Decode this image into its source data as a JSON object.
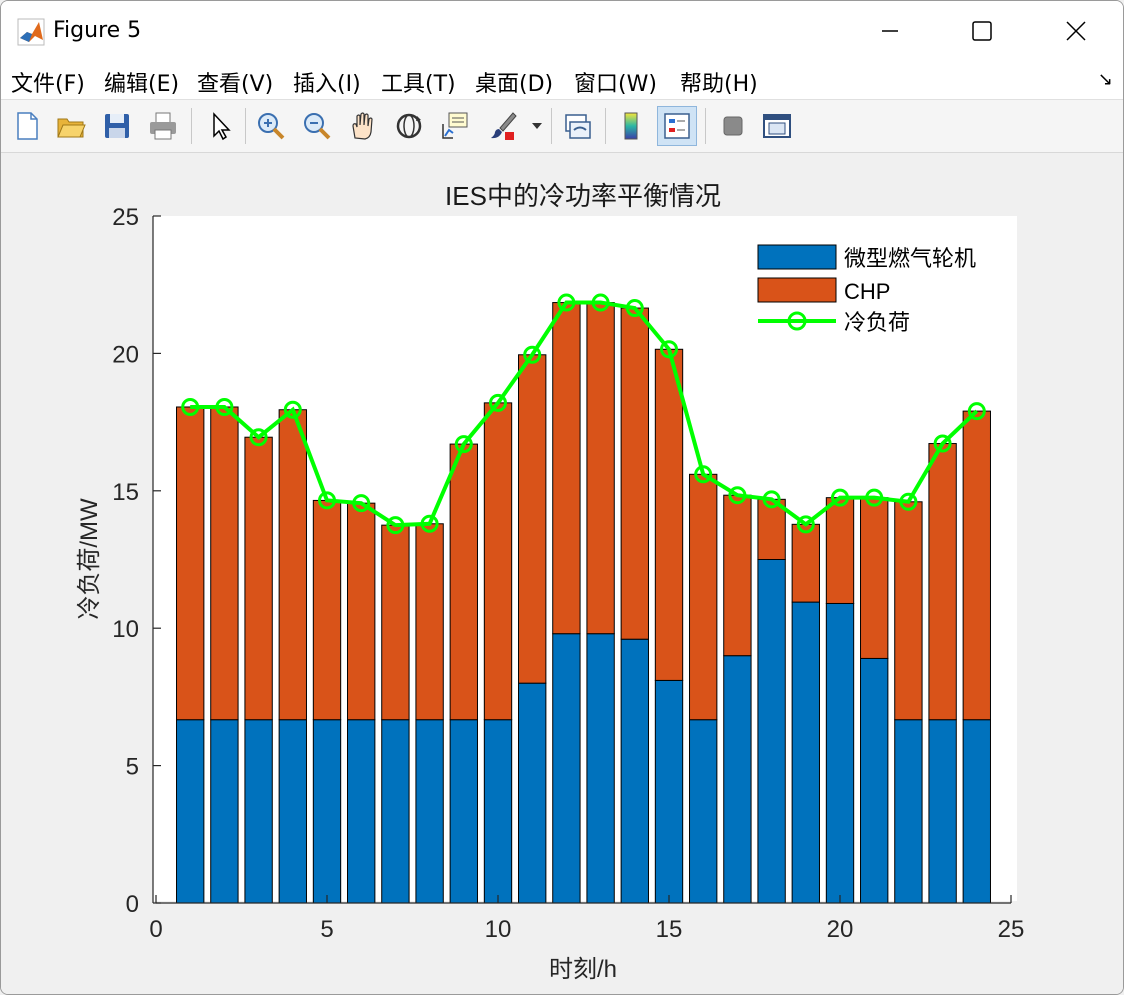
{
  "window": {
    "title": "Figure 5"
  },
  "menu": [
    "文件(F)",
    "编辑(E)",
    "查看(V)",
    "插入(I)",
    "工具(T)",
    "桌面(D)",
    "窗口(W)",
    "帮助(H)"
  ],
  "toolbar": {
    "icons": [
      "new-figure-icon",
      "open-file-icon",
      "save-icon",
      "print-icon",
      "pointer-icon",
      "zoom-in-icon",
      "zoom-out-icon",
      "pan-icon",
      "rotate-3d-icon",
      "data-cursor-icon",
      "brush-icon",
      "link-plot-icon",
      "colorbar-icon",
      "legend-icon",
      "hide-tools-icon",
      "dock-icon"
    ]
  },
  "colors": {
    "mt": "#0072bd",
    "chp": "#d95319",
    "load": "#00ff00"
  },
  "chart_data": {
    "type": "bar",
    "stacked": true,
    "title": "IES中的冷功率平衡情况",
    "xlabel": "时刻/h",
    "ylabel": "冷负荷/MW",
    "xlim": [
      0,
      25
    ],
    "ylim": [
      0,
      25
    ],
    "xticks": [
      0,
      5,
      10,
      15,
      20,
      25
    ],
    "yticks": [
      0,
      5,
      10,
      15,
      20,
      25
    ],
    "legend_position": "top-right",
    "x": [
      1,
      2,
      3,
      4,
      5,
      6,
      7,
      8,
      9,
      10,
      11,
      12,
      13,
      14,
      15,
      16,
      17,
      18,
      19,
      20,
      21,
      22,
      23,
      24
    ],
    "series": [
      {
        "name": "微型燃气轮机",
        "kind": "bar",
        "values": [
          6.67,
          6.67,
          6.67,
          6.67,
          6.67,
          6.67,
          6.67,
          6.67,
          6.67,
          6.67,
          8.0,
          9.8,
          9.8,
          9.6,
          8.1,
          6.67,
          9.0,
          12.5,
          10.95,
          10.9,
          8.9,
          6.67,
          6.67,
          6.67
        ]
      },
      {
        "name": "CHP",
        "kind": "bar",
        "values": [
          11.38,
          11.38,
          10.28,
          11.28,
          7.98,
          7.88,
          7.08,
          7.13,
          10.03,
          11.53,
          11.95,
          12.05,
          12.05,
          12.05,
          12.05,
          8.93,
          5.84,
          2.19,
          2.83,
          3.85,
          5.85,
          7.93,
          10.05,
          11.23
        ]
      },
      {
        "name": "冷负荷",
        "kind": "line",
        "values": [
          18.05,
          18.05,
          16.95,
          17.95,
          14.65,
          14.55,
          13.75,
          13.8,
          16.7,
          18.2,
          19.95,
          21.85,
          21.85,
          21.65,
          20.15,
          15.6,
          14.84,
          14.69,
          13.78,
          14.75,
          14.75,
          14.6,
          16.72,
          17.9
        ]
      }
    ]
  }
}
